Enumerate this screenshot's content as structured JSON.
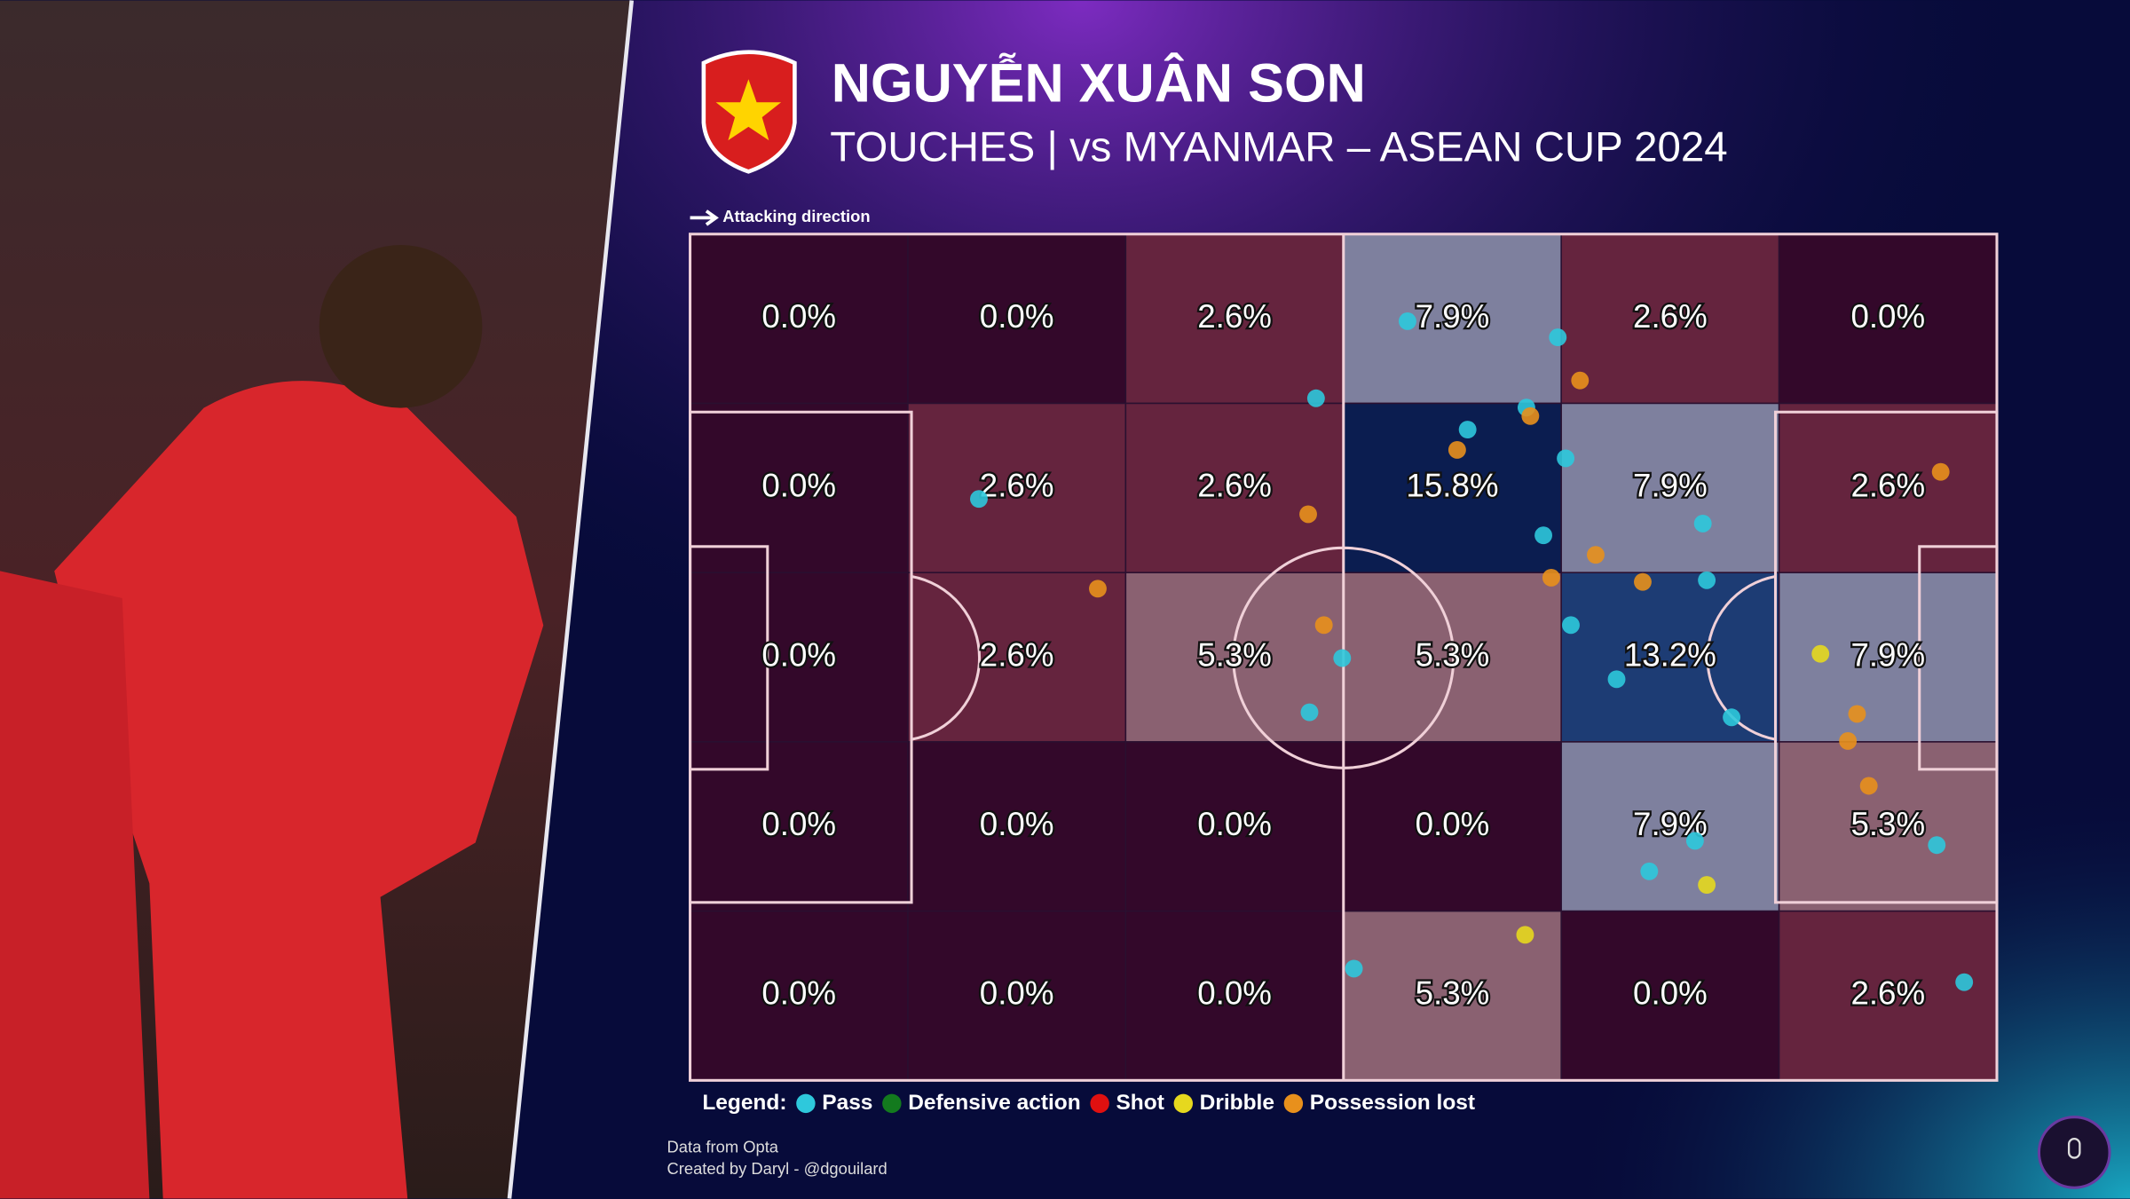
{
  "header": {
    "title": "NGUYỄN XUÂN SON",
    "subtitle": "TOUCHES | vs MYANMAR – ASEAN CUP 2024"
  },
  "chart_data": {
    "type": "heatmap",
    "direction_label": "Attacking direction",
    "values": [
      [
        0.0,
        0.0,
        2.6,
        7.9,
        2.6,
        0.0
      ],
      [
        0.0,
        2.6,
        2.6,
        15.8,
        7.9,
        2.6
      ],
      [
        0.0,
        2.6,
        5.3,
        5.3,
        13.2,
        7.9
      ],
      [
        0.0,
        0.0,
        0.0,
        0.0,
        7.9,
        5.3
      ],
      [
        0.0,
        0.0,
        0.0,
        5.3,
        0.0,
        2.6
      ]
    ],
    "value_labels": [
      [
        "0.0%",
        "0.0%",
        "2.6%",
        "7.9%",
        "2.6%",
        "0.0%"
      ],
      [
        "0.0%",
        "2.6%",
        "2.6%",
        "15.8%",
        "7.9%",
        "2.6%"
      ],
      [
        "0.0%",
        "2.6%",
        "5.3%",
        "5.3%",
        "13.2%",
        "7.9%"
      ],
      [
        "0.0%",
        "0.0%",
        "0.0%",
        "0.0%",
        "7.9%",
        "5.3%"
      ],
      [
        "0.0%",
        "0.0%",
        "0.0%",
        "5.3%",
        "0.0%",
        "2.6%"
      ]
    ],
    "xlim": [
      0,
      100
    ],
    "ylim": [
      0,
      100
    ],
    "legend_title": "Legend:",
    "legend": "bottom-left",
    "series": [
      {
        "name": "Pass",
        "color": "#2ec8dc",
        "x": [
          54.9,
          66.4,
          47.9,
          59.5,
          64.0,
          67.0,
          22.1,
          65.3,
          77.5,
          77.8,
          49.9,
          67.4,
          70.9,
          47.4,
          79.7,
          76.9,
          73.4,
          95.4,
          50.8,
          97.5
        ],
        "y": [
          10.3,
          12.2,
          19.4,
          23.1,
          20.5,
          26.5,
          31.3,
          35.6,
          34.2,
          40.9,
          50.1,
          46.2,
          52.6,
          56.5,
          57.1,
          71.7,
          75.3,
          72.2,
          86.8,
          88.4
        ]
      },
      {
        "name": "Defensive action",
        "color": "#137a1e",
        "x": [],
        "y": []
      },
      {
        "name": "Shot",
        "color": "#e01010",
        "x": [],
        "y": []
      },
      {
        "name": "Dribble",
        "color": "#e6d81e",
        "x": [
          86.5,
          77.8,
          63.9
        ],
        "y": [
          49.6,
          76.9,
          82.8
        ]
      },
      {
        "name": "Possession lost",
        "color": "#e8901c",
        "x": [
          68.1,
          64.3,
          58.7,
          47.3,
          95.7,
          31.2,
          69.3,
          65.9,
          72.9,
          48.5,
          89.3,
          88.6,
          90.2
        ],
        "y": [
          17.3,
          21.5,
          25.5,
          33.1,
          28.1,
          41.9,
          37.9,
          40.6,
          41.1,
          46.2,
          56.7,
          59.9,
          65.2
        ]
      }
    ]
  },
  "footer": {
    "source": "Data from Opta",
    "credit": "Created by Daryl - @dgouilard"
  }
}
